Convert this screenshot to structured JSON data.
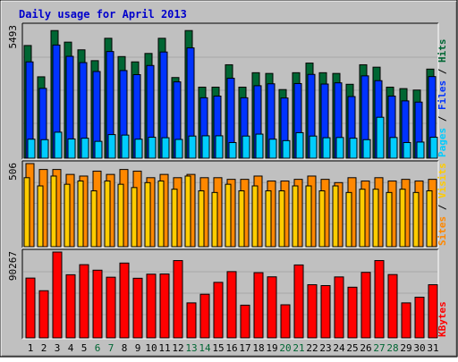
{
  "chart_data": {
    "type": "bar",
    "title": "Daily usage for April 2013",
    "days": [
      "1",
      "2",
      "3",
      "4",
      "5",
      "6",
      "7",
      "8",
      "9",
      "10",
      "11",
      "12",
      "13",
      "14",
      "15",
      "16",
      "17",
      "18",
      "19",
      "20",
      "21",
      "22",
      "23",
      "24",
      "25",
      "26",
      "27",
      "28",
      "29",
      "30",
      "31"
    ],
    "weekend_days": [
      6,
      7,
      13,
      14,
      20,
      21,
      27,
      28
    ],
    "colors": {
      "background": "#c0c0c0",
      "title": "#0000cc",
      "hits": "#006633",
      "files": "#0033ff",
      "pages": "#00ccff",
      "visits": "#ffcc00",
      "sites": "#ff8800",
      "kbytes": "#ff0000",
      "weekend_label": "#006633",
      "weekday_label": "#000000"
    },
    "panels": [
      {
        "id": "top",
        "ymax_label": "5493",
        "ymax": 5493,
        "right_labels": [
          {
            "text": "Pages",
            "color": "#00ccff"
          },
          {
            "text": " / ",
            "color": "#000000"
          },
          {
            "text": "Files",
            "color": "#0033ff"
          },
          {
            "text": " / ",
            "color": "#000000"
          },
          {
            "text": "Hits",
            "color": "#006633"
          }
        ],
        "series": [
          {
            "name": "Hits",
            "values": [
              4680,
              3380,
              5300,
              4820,
              4500,
              4050,
              4980,
              4220,
              4000,
              4350,
              4980,
              3350,
              5300,
              2950,
              2950,
              3880,
              2950,
              3550,
              3520,
              2850,
              3550,
              3950,
              3550,
              3520,
              3070,
              3880,
              3780,
              2950,
              2890,
              2830,
              3700
            ]
          },
          {
            "name": "Files",
            "values": [
              4000,
              2900,
              4700,
              4230,
              3970,
              3600,
              4430,
              3640,
              3470,
              3850,
              4410,
              3170,
              4580,
              2510,
              2580,
              3320,
              2510,
              3010,
              3090,
              2500,
              3100,
              3480,
              3080,
              3130,
              2560,
              3420,
              3220,
              2580,
              2380,
              2330,
              3390
            ]
          },
          {
            "name": "Pages",
            "values": [
              790,
              770,
              1080,
              800,
              830,
              700,
              980,
              960,
              790,
              870,
              850,
              780,
              920,
              930,
              930,
              650,
              920,
              1000,
              790,
              730,
              1060,
              920,
              850,
              860,
              830,
              770,
              1700,
              860,
              650,
              670,
              870
            ]
          }
        ]
      },
      {
        "id": "middle",
        "ymax_label": "506",
        "ymax": 506,
        "right_labels": [
          {
            "text": "Sites",
            "color": "#ff8800"
          },
          {
            "text": " / ",
            "color": "#000000"
          },
          {
            "text": "Visits",
            "color": "#ffcc00"
          }
        ],
        "series": [
          {
            "name": "Visits",
            "values": [
              420,
              370,
              430,
              380,
              400,
              340,
              400,
              380,
              360,
              390,
              400,
              350,
              430,
              340,
              330,
              380,
              340,
              370,
              340,
              340,
              370,
              370,
              340,
              370,
              330,
              350,
              350,
              330,
              350,
              330,
              340
            ]
          },
          {
            "name": "Sites",
            "values": [
              506,
              470,
              470,
              440,
              430,
              460,
              440,
              470,
              460,
              420,
              440,
              420,
              440,
              420,
              420,
              410,
              410,
              430,
              400,
              400,
              410,
              430,
              410,
              390,
              420,
              400,
              420,
              400,
              410,
              400,
              410
            ]
          }
        ]
      },
      {
        "id": "bottom",
        "ymax_label": "90267",
        "ymax": 90267,
        "right_labels": [
          {
            "text": "KBytes",
            "color": "#ff0000"
          }
        ],
        "series": [
          {
            "name": "KBytes",
            "values": [
              62900,
              49600,
              90267,
              66400,
              77000,
              71200,
              63800,
              78700,
              62700,
              67000,
              67200,
              81300,
              36800,
              45900,
              58400,
              69700,
              34400,
              68600,
              64200,
              34800,
              76700,
              55900,
              55000,
              64100,
              53300,
              68900,
              81300,
              66600,
              36800,
              42800,
              55900
            ]
          }
        ]
      }
    ]
  }
}
